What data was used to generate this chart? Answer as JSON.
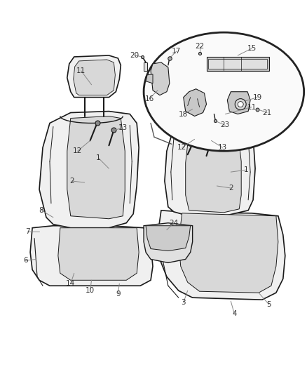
{
  "bg_color": "#ffffff",
  "fig_width": 4.38,
  "fig_height": 5.33,
  "dpi": 100,
  "line_color": "#222222",
  "seat_fill": "#f0f0f0",
  "seat_dark": "#d8d8d8",
  "seat_edge": "#1a1a1a",
  "label_color": "#333333",
  "leader_color": "#888888",
  "inset_fill": "#fafafa",
  "inset_edge": "#222222"
}
